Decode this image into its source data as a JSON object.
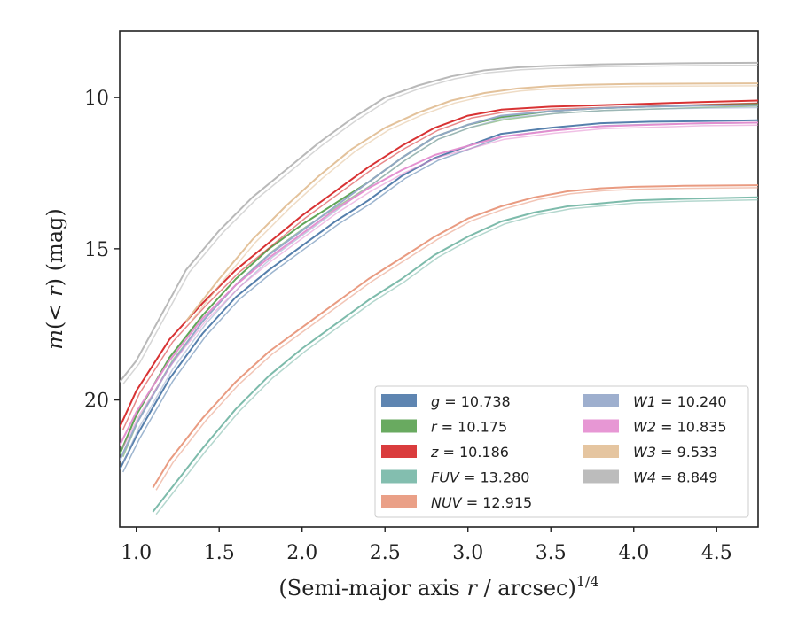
{
  "chart_data": {
    "type": "line",
    "xlabel": "(Semi-major axis r / arcsec)",
    "xlabel_main": "(Semi-major axis ",
    "xlabel_var": "r",
    "xlabel_tail": " / arcsec)",
    "xlabel_sup": "1/4",
    "ylabel": "m(< r) (mag)",
    "ylabel_parts": [
      "m",
      "(< ",
      "r",
      ") (mag)"
    ],
    "xlim": [
      0.9,
      4.75
    ],
    "ylim": [
      24.2,
      7.8
    ],
    "y_inverted": true,
    "xticks": [
      1.0,
      1.5,
      2.0,
      2.5,
      3.0,
      3.5,
      4.0,
      4.5
    ],
    "xtick_labels": [
      "1.0",
      "1.5",
      "2.0",
      "2.5",
      "3.0",
      "3.5",
      "4.0",
      "4.5"
    ],
    "yticks": [
      10,
      15,
      20
    ],
    "ytick_labels": [
      "10",
      "15",
      "20"
    ],
    "legend_position": "lower-right",
    "grid": false,
    "series": [
      {
        "name": "g",
        "value": "10.738",
        "color": "#4c78a8",
        "x": [
          0.9,
          1.0,
          1.2,
          1.4,
          1.6,
          1.8,
          2.0,
          2.2,
          2.4,
          2.6,
          2.8,
          3.0,
          3.2,
          3.5,
          3.8,
          4.1,
          4.4,
          4.75
        ],
        "y": [
          22.3,
          21.2,
          19.3,
          17.8,
          16.6,
          15.7,
          14.9,
          14.1,
          13.4,
          12.6,
          12.0,
          11.6,
          11.2,
          11.0,
          10.85,
          10.8,
          10.78,
          10.75
        ]
      },
      {
        "name": "r",
        "value": "10.175",
        "color": "#59a14f",
        "x": [
          0.9,
          1.0,
          1.2,
          1.4,
          1.6,
          1.8,
          2.0,
          2.2,
          2.4,
          2.6,
          2.8,
          3.0,
          3.2,
          3.5,
          3.8,
          4.1,
          4.4,
          4.75
        ],
        "y": [
          21.8,
          20.5,
          18.6,
          17.2,
          16.0,
          15.0,
          14.2,
          13.5,
          12.8,
          12.0,
          11.3,
          10.9,
          10.65,
          10.45,
          10.35,
          10.3,
          10.25,
          10.2
        ]
      },
      {
        "name": "z",
        "value": "10.186",
        "color": "#d62728",
        "x": [
          0.9,
          1.0,
          1.2,
          1.4,
          1.6,
          1.8,
          2.0,
          2.2,
          2.4,
          2.6,
          2.8,
          3.0,
          3.2,
          3.5,
          3.8,
          4.1,
          4.4,
          4.75
        ],
        "y": [
          20.9,
          19.7,
          18.0,
          16.8,
          15.7,
          14.8,
          13.9,
          13.1,
          12.3,
          11.6,
          11.0,
          10.6,
          10.4,
          10.3,
          10.25,
          10.2,
          10.15,
          10.1
        ]
      },
      {
        "name": "FUV",
        "value": "13.280",
        "color": "#76b7a6",
        "x": [
          1.1,
          1.2,
          1.4,
          1.6,
          1.8,
          2.0,
          2.2,
          2.4,
          2.6,
          2.8,
          3.0,
          3.2,
          3.4,
          3.6,
          3.8,
          4.0,
          4.3,
          4.75
        ],
        "y": [
          23.7,
          23.0,
          21.6,
          20.3,
          19.2,
          18.3,
          17.5,
          16.7,
          16.0,
          15.2,
          14.6,
          14.1,
          13.8,
          13.6,
          13.5,
          13.4,
          13.35,
          13.3
        ]
      },
      {
        "name": "NUV",
        "value": "12.915",
        "color": "#e8967a",
        "x": [
          1.1,
          1.2,
          1.4,
          1.6,
          1.8,
          2.0,
          2.2,
          2.4,
          2.6,
          2.8,
          3.0,
          3.2,
          3.4,
          3.6,
          3.8,
          4.0,
          4.3,
          4.75
        ],
        "y": [
          22.9,
          22.0,
          20.6,
          19.4,
          18.4,
          17.6,
          16.8,
          16.0,
          15.3,
          14.6,
          14.0,
          13.6,
          13.3,
          13.1,
          13.0,
          12.95,
          12.92,
          12.9
        ]
      },
      {
        "name": "W1",
        "value": "10.240",
        "color": "#93a6c9",
        "x": [
          0.9,
          1.0,
          1.2,
          1.4,
          1.6,
          1.8,
          2.0,
          2.2,
          2.4,
          2.6,
          2.8,
          3.0,
          3.2,
          3.5,
          3.8,
          4.1,
          4.4,
          4.75
        ],
        "y": [
          22.0,
          20.8,
          18.9,
          17.4,
          16.2,
          15.2,
          14.4,
          13.6,
          12.8,
          12.0,
          11.3,
          10.9,
          10.6,
          10.45,
          10.35,
          10.3,
          10.27,
          10.25
        ]
      },
      {
        "name": "W2",
        "value": "10.835",
        "color": "#e48ccf",
        "x": [
          0.9,
          1.0,
          1.2,
          1.4,
          1.6,
          1.8,
          2.0,
          2.2,
          2.4,
          2.6,
          2.8,
          3.0,
          3.2,
          3.5,
          3.8,
          4.1,
          4.4,
          4.75
        ],
        "y": [
          21.5,
          20.4,
          18.7,
          17.3,
          16.2,
          15.3,
          14.5,
          13.7,
          13.0,
          12.4,
          11.9,
          11.6,
          11.3,
          11.1,
          10.95,
          10.9,
          10.85,
          10.83
        ]
      },
      {
        "name": "W3",
        "value": "9.533",
        "color": "#e2bf96",
        "x": [
          1.3,
          1.5,
          1.7,
          1.9,
          2.1,
          2.3,
          2.5,
          2.7,
          2.9,
          3.1,
          3.3,
          3.5,
          3.7,
          4.0,
          4.4,
          4.75
        ],
        "y": [
          17.4,
          16.0,
          14.7,
          13.6,
          12.6,
          11.7,
          11.0,
          10.5,
          10.1,
          9.85,
          9.7,
          9.62,
          9.58,
          9.55,
          9.54,
          9.53
        ]
      },
      {
        "name": "W4",
        "value": "8.849",
        "color": "#b5b5b5",
        "x": [
          0.9,
          1.0,
          1.3,
          1.5,
          1.7,
          1.9,
          2.1,
          2.3,
          2.5,
          2.7,
          2.9,
          3.1,
          3.3,
          3.5,
          3.8,
          4.1,
          4.4,
          4.75
        ],
        "y": [
          19.4,
          18.7,
          15.7,
          14.4,
          13.3,
          12.4,
          11.5,
          10.7,
          10.0,
          9.6,
          9.3,
          9.1,
          9.0,
          8.95,
          8.9,
          8.88,
          8.86,
          8.85
        ]
      }
    ]
  }
}
